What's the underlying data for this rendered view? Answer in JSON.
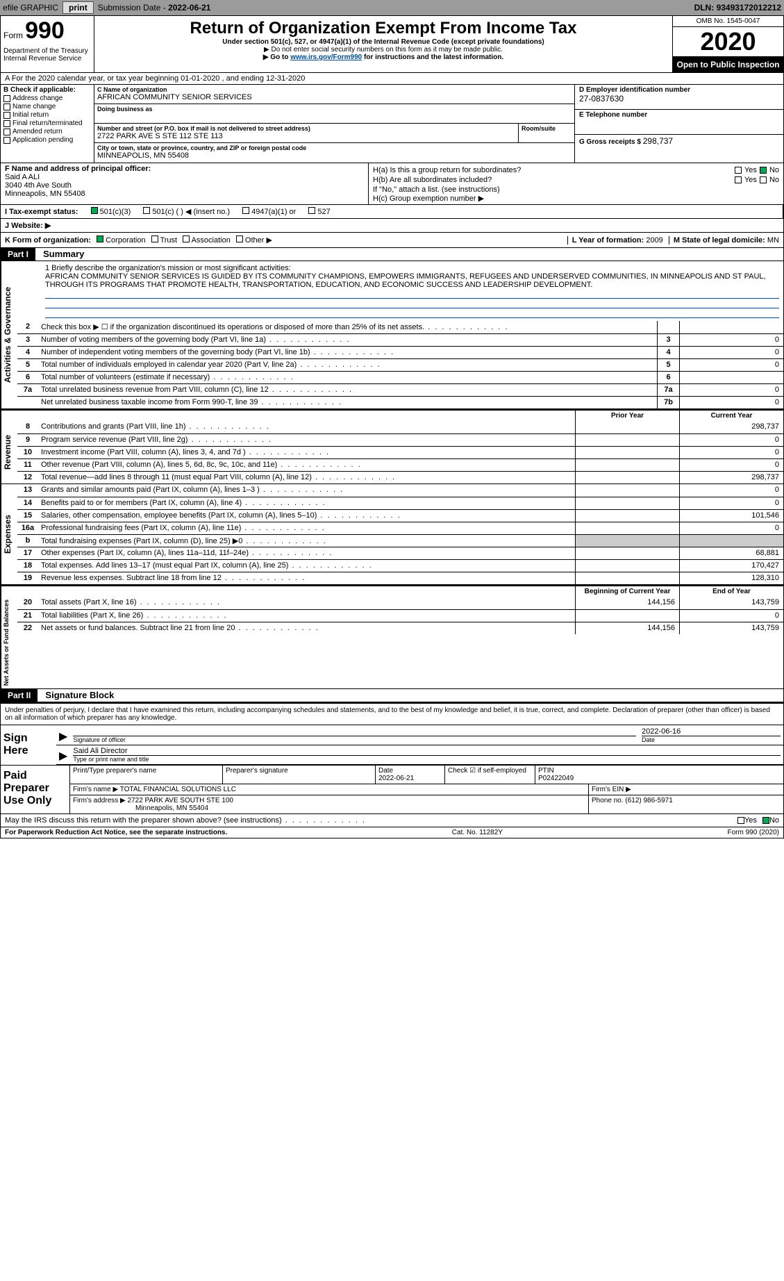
{
  "topbar": {
    "efile": "efile GRAPHIC",
    "print": "print",
    "subdate_label": "Submission Date - ",
    "subdate": "2022-06-21",
    "dln_label": "DLN: ",
    "dln": "93493172012212"
  },
  "header": {
    "form_word": "Form",
    "form_num": "990",
    "dept": "Department of the Treasury Internal Revenue Service",
    "title": "Return of Organization Exempt From Income Tax",
    "sub1": "Under section 501(c), 527, or 4947(a)(1) of the Internal Revenue Code (except private foundations)",
    "sub2": "▶ Do not enter social security numbers on this form as it may be made public.",
    "sub3_pre": "▶ Go to ",
    "sub3_link": "www.irs.gov/Form990",
    "sub3_post": " for instructions and the latest information.",
    "omb": "OMB No. 1545-0047",
    "year": "2020",
    "otp": "Open to Public Inspection"
  },
  "row_a": "A For the 2020 calendar year, or tax year beginning 01-01-2020   , and ending 12-31-2020",
  "col_b": {
    "title": "B Check if applicable:",
    "items": [
      "Address change",
      "Name change",
      "Initial return",
      "Final return/terminated",
      "Amended return",
      "Application pending"
    ]
  },
  "col_c": {
    "name_lbl": "C Name of organization",
    "name": "AFRICAN COMMUNITY SENIOR SERVICES",
    "dba_lbl": "Doing business as",
    "dba": "",
    "addr_lbl": "Number and street (or P.O. box if mail is not delivered to street address)",
    "room_lbl": "Room/suite",
    "addr": "2722 PARK AVE S Ste 112 STE 113",
    "city_lbl": "City or town, state or province, country, and ZIP or foreign postal code",
    "city": "Minneapolis, MN  55408"
  },
  "col_de": {
    "d_lbl": "D Employer identification number",
    "d_val": "27-0837630",
    "e_lbl": "E Telephone number",
    "e_val": "",
    "g_lbl": "G Gross receipts $ ",
    "g_val": "298,737"
  },
  "row_f": {
    "lbl": "F  Name and address of principal officer:",
    "name": "Said A ALI",
    "addr1": "3040 4th Ave South",
    "addr2": "Minneapolis, MN  55408"
  },
  "row_h": {
    "ha": "H(a)  Is this a group return for subordinates?",
    "hb": "H(b)  Are all subordinates included?",
    "hnote": "If \"No,\" attach a list. (see instructions)",
    "hc": "H(c)  Group exemption number ▶",
    "yes": "Yes",
    "no": "No"
  },
  "row_i": {
    "lbl": "I  Tax-exempt status:",
    "o1": "501(c)(3)",
    "o2": "501(c) (  ) ◀ (insert no.)",
    "o3": "4947(a)(1) or",
    "o4": "527"
  },
  "row_j": {
    "lbl": "J  Website: ▶"
  },
  "row_k": {
    "lbl": "K Form of organization:",
    "o1": "Corporation",
    "o2": "Trust",
    "o3": "Association",
    "o4": "Other ▶",
    "l_lbl": "L Year of formation: ",
    "l_val": "2009",
    "m_lbl": "M State of legal domicile: ",
    "m_val": "MN"
  },
  "part1": {
    "label": "Part I",
    "name": "Summary"
  },
  "mission": {
    "lbl": "1  Briefly describe the organization's mission or most significant activities:",
    "text": "AFRICAN COMMUNITY SENIOR SERVICES IS GUIDED BY ITS COMMUNITY CHAMPIONS, EMPOWERS IMMIGRANTS, REFUGEES AND UNDERSERVED COMMUNITIES, IN MINNEAPOLIS AND ST PAUL, THROUGH ITS PROGRAMS THAT PROMOTE HEALTH, TRANSPORTATION, EDUCATION, AND ECONOMIC SUCCESS AND LEADERSHIP DEVELOPMENT."
  },
  "gov_lines": [
    {
      "n": "2",
      "t": "Check this box ▶ ☐ if the organization discontinued its operations or disposed of more than 25% of its net assets.",
      "b": "",
      "a": ""
    },
    {
      "n": "3",
      "t": "Number of voting members of the governing body (Part VI, line 1a)",
      "b": "3",
      "a": "0"
    },
    {
      "n": "4",
      "t": "Number of independent voting members of the governing body (Part VI, line 1b)",
      "b": "4",
      "a": "0"
    },
    {
      "n": "5",
      "t": "Total number of individuals employed in calendar year 2020 (Part V, line 2a)",
      "b": "5",
      "a": "0"
    },
    {
      "n": "6",
      "t": "Total number of volunteers (estimate if necessary)",
      "b": "6",
      "a": ""
    },
    {
      "n": "7a",
      "t": "Total unrelated business revenue from Part VIII, column (C), line 12",
      "b": "7a",
      "a": "0"
    },
    {
      "n": "",
      "t": "Net unrelated business taxable income from Form 990-T, line 39",
      "b": "7b",
      "a": "0"
    }
  ],
  "col_hdrs": {
    "prior": "Prior Year",
    "current": "Current Year"
  },
  "rev_lines": [
    {
      "n": "8",
      "t": "Contributions and grants (Part VIII, line 1h)",
      "p": "",
      "c": "298,737"
    },
    {
      "n": "9",
      "t": "Program service revenue (Part VIII, line 2g)",
      "p": "",
      "c": "0"
    },
    {
      "n": "10",
      "t": "Investment income (Part VIII, column (A), lines 3, 4, and 7d )",
      "p": "",
      "c": "0"
    },
    {
      "n": "11",
      "t": "Other revenue (Part VIII, column (A), lines 5, 6d, 8c, 9c, 10c, and 11e)",
      "p": "",
      "c": "0"
    },
    {
      "n": "12",
      "t": "Total revenue—add lines 8 through 11 (must equal Part VIII, column (A), line 12)",
      "p": "",
      "c": "298,737"
    }
  ],
  "exp_lines": [
    {
      "n": "13",
      "t": "Grants and similar amounts paid (Part IX, column (A), lines 1–3 )",
      "p": "",
      "c": "0"
    },
    {
      "n": "14",
      "t": "Benefits paid to or for members (Part IX, column (A), line 4)",
      "p": "",
      "c": "0"
    },
    {
      "n": "15",
      "t": "Salaries, other compensation, employee benefits (Part IX, column (A), lines 5–10)",
      "p": "",
      "c": "101,546"
    },
    {
      "n": "16a",
      "t": "Professional fundraising fees (Part IX, column (A), line 11e)",
      "p": "",
      "c": "0"
    },
    {
      "n": "b",
      "t": "Total fundraising expenses (Part IX, column (D), line 25) ▶0",
      "p": "shade",
      "c": "shade"
    },
    {
      "n": "17",
      "t": "Other expenses (Part IX, column (A), lines 11a–11d, 11f–24e)",
      "p": "",
      "c": "68,881"
    },
    {
      "n": "18",
      "t": "Total expenses. Add lines 13–17 (must equal Part IX, column (A), line 25)",
      "p": "",
      "c": "170,427"
    },
    {
      "n": "19",
      "t": "Revenue less expenses. Subtract line 18 from line 12",
      "p": "",
      "c": "128,310"
    }
  ],
  "na_hdrs": {
    "begin": "Beginning of Current Year",
    "end": "End of Year"
  },
  "na_lines": [
    {
      "n": "20",
      "t": "Total assets (Part X, line 16)",
      "p": "144,156",
      "c": "143,759"
    },
    {
      "n": "21",
      "t": "Total liabilities (Part X, line 26)",
      "p": "",
      "c": "0"
    },
    {
      "n": "22",
      "t": "Net assets or fund balances. Subtract line 21 from line 20",
      "p": "144,156",
      "c": "143,759"
    }
  ],
  "part2": {
    "label": "Part II",
    "name": "Signature Block"
  },
  "sig_decl": "Under penalties of perjury, I declare that I have examined this return, including accompanying schedules and statements, and to the best of my knowledge and belief, it is true, correct, and complete. Declaration of preparer (other than officer) is based on all information of which preparer has any knowledge.",
  "sign": {
    "here": "Sign Here",
    "sig_lbl": "Signature of officer",
    "date_lbl": "Date",
    "date": "2022-06-16",
    "name": "Said Ali  Director",
    "name_lbl": "Type or print name and title"
  },
  "prep": {
    "title": "Paid Preparer Use Only",
    "r1": {
      "c1": "Print/Type preparer's name",
      "c2": "Preparer's signature",
      "c3": "Date",
      "c3v": "2022-06-21",
      "c4": "Check ☑ if self-employed",
      "c5": "PTIN",
      "c5v": "P02422049"
    },
    "r2": {
      "lbl": "Firm's name   ▶ ",
      "val": "TOTAL FINANCIAL SOLUTIONS LLC",
      "ein": "Firm's EIN ▶"
    },
    "r3": {
      "lbl": "Firm's address ▶ ",
      "val1": "2722 PARK AVE SOUTH STE 100",
      "val2": "Minneapolis, MN  55404",
      "ph": "Phone no. (612) 986-5971"
    }
  },
  "discuss": "May the IRS discuss this return with the preparer shown above? (see instructions)",
  "footer": {
    "left": "For Paperwork Reduction Act Notice, see the separate instructions.",
    "mid": "Cat. No. 11282Y",
    "right": "Form 990 (2020)"
  },
  "vlabels": {
    "gov": "Activities & Governance",
    "rev": "Revenue",
    "exp": "Expenses",
    "na": "Net Assets or Fund Balances"
  }
}
